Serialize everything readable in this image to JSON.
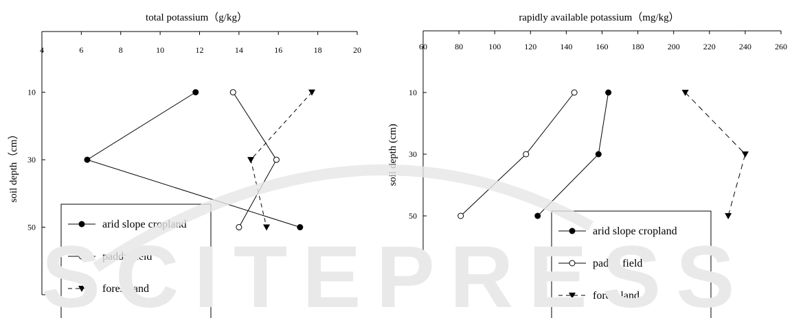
{
  "watermark_text": "SCITEPRESS",
  "chart_data": [
    {
      "type": "line",
      "title": "total potassium（g/kg）",
      "ylabel": "soil depth（cm）",
      "xlim": [
        4,
        20
      ],
      "x_ticks": [
        "4",
        "6",
        "8",
        "10",
        "12",
        "14",
        "16",
        "18",
        "20"
      ],
      "x_tick_values": [
        4,
        6,
        8,
        10,
        12,
        14,
        16,
        18,
        20
      ],
      "y_ticks": [
        "10",
        "30",
        "50"
      ],
      "y_tick_values": [
        10,
        30,
        50
      ],
      "ylim": [
        -8,
        70
      ],
      "y_inverted": true,
      "x_axis_position": "top",
      "grid": false,
      "legend_position": "bottom-left",
      "series": [
        {
          "name": "arid slope cropland",
          "marker": "filled-circle",
          "dash": "solid",
          "x": [
            11.8,
            6.3,
            17.1
          ],
          "y": [
            10,
            30,
            50
          ]
        },
        {
          "name": "paddy field",
          "marker": "open-circle",
          "dash": "solid",
          "x": [
            13.7,
            15.9,
            14.0
          ],
          "y": [
            10,
            30,
            50
          ]
        },
        {
          "name": "forest land",
          "marker": "filled-triangle-down",
          "dash": "dashed",
          "x": [
            17.7,
            14.6,
            15.4
          ],
          "y": [
            10,
            30,
            50
          ]
        }
      ]
    },
    {
      "type": "line",
      "title": "rapidly available potassium（mg/kg）",
      "ylabel": "soil depth (cm)",
      "xlim": [
        60,
        260
      ],
      "x_ticks": [
        "60",
        "80",
        "100",
        "120",
        "140",
        "160",
        "180",
        "200",
        "220",
        "240",
        "260"
      ],
      "x_tick_values": [
        60,
        80,
        100,
        120,
        140,
        160,
        180,
        200,
        220,
        240,
        260
      ],
      "y_ticks": [
        "10",
        "30",
        "50"
      ],
      "y_tick_values": [
        10,
        30,
        50
      ],
      "ylim": [
        -10,
        70
      ],
      "y_inverted": true,
      "x_axis_position": "top",
      "grid": false,
      "legend_position": "bottom-left",
      "series": [
        {
          "name": "arid slope cropland",
          "marker": "filled-circle",
          "dash": "solid",
          "x": [
            163.5,
            158.0,
            124.0
          ],
          "y": [
            10,
            30,
            50
          ]
        },
        {
          "name": "paddy field",
          "marker": "open-circle",
          "dash": "solid",
          "x": [
            144.5,
            117.5,
            81.0
          ],
          "y": [
            10,
            30,
            50
          ]
        },
        {
          "name": "forest land",
          "marker": "filled-triangle-down",
          "dash": "dashed",
          "x": [
            206.5,
            240.0,
            230.5
          ],
          "y": [
            10,
            30,
            50
          ]
        }
      ]
    }
  ]
}
